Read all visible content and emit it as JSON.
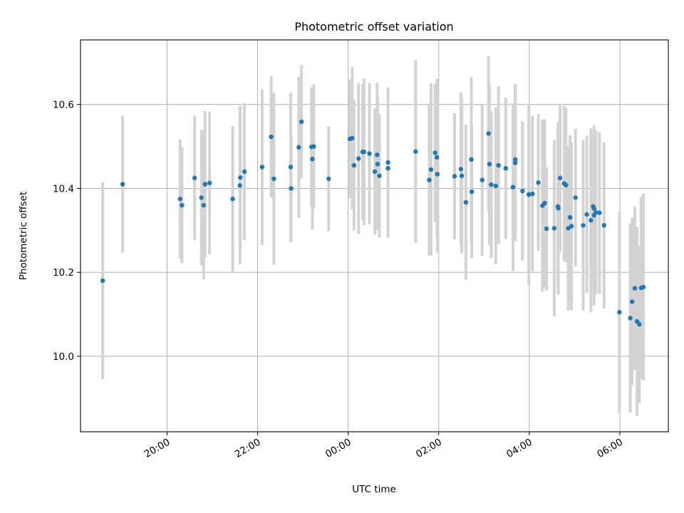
{
  "chart_data": {
    "type": "scatter",
    "title": "Photometric offset variation",
    "xlabel": "UTC time",
    "ylabel": "Photometric offset",
    "x_ticks": [
      "20:00",
      "22:00",
      "00:00",
      "02:00",
      "04:00",
      "06:00"
    ],
    "x_tick_hours": [
      20,
      22,
      24,
      26,
      28,
      30
    ],
    "y_ticks": [
      10.0,
      10.2,
      10.4,
      10.6
    ],
    "xlim_hours": [
      18.09,
      31.07
    ],
    "ylim": [
      9.82,
      10.754
    ],
    "grid": true,
    "legend": "none",
    "colors": {
      "marker": "#1f77b4",
      "errorbar": "#d3d3d3",
      "grid": "#b0b0b0"
    },
    "x_unit": "hours since 00:00 on the first night (values above 24 are the following day)",
    "series": [
      {
        "x": [
          18.58,
          19.02,
          20.29,
          20.33,
          20.61,
          20.76,
          20.81,
          20.84,
          20.94,
          21.45,
          21.61,
          21.62,
          21.71,
          22.1,
          22.3,
          22.36,
          22.73,
          22.74,
          22.91,
          22.97,
          23.19,
          23.21,
          23.24,
          23.57,
          24.04,
          24.09,
          24.13,
          24.23,
          24.32,
          24.35,
          24.47,
          24.59,
          24.64,
          24.65,
          24.69,
          24.88,
          24.88,
          25.49,
          25.79,
          25.83,
          25.92,
          25.96,
          25.97,
          26.35,
          26.49,
          26.51,
          26.6,
          26.72,
          26.73,
          26.96,
          27.1,
          27.12,
          27.16,
          27.26,
          27.32,
          27.48,
          27.64,
          27.69,
          27.69,
          27.85,
          27.99,
          27.99,
          28.07,
          28.2,
          28.29,
          28.34,
          28.38,
          28.55,
          28.63,
          28.64,
          28.68,
          28.77,
          28.81,
          28.86,
          28.9,
          28.93,
          29.02,
          29.19,
          29.27,
          29.36,
          29.41,
          29.43,
          29.43,
          29.47,
          29.55,
          29.65,
          29.99,
          30.23,
          30.27,
          30.33,
          30.38,
          30.43,
          30.47,
          30.52
        ],
        "y": [
          10.18,
          10.41,
          10.375,
          10.36,
          10.425,
          10.378,
          10.36,
          10.41,
          10.413,
          10.375,
          10.407,
          10.426,
          10.44,
          10.451,
          10.523,
          10.423,
          10.451,
          10.4,
          10.498,
          10.559,
          10.499,
          10.47,
          10.5,
          10.423,
          10.518,
          10.52,
          10.455,
          10.471,
          10.487,
          10.487,
          10.483,
          10.44,
          10.48,
          10.458,
          10.43,
          10.462,
          10.448,
          10.488,
          10.42,
          10.445,
          10.485,
          10.474,
          10.434,
          10.429,
          10.446,
          10.43,
          10.367,
          10.469,
          10.392,
          10.42,
          10.531,
          10.458,
          10.409,
          10.406,
          10.455,
          10.448,
          10.403,
          10.461,
          10.469,
          10.394,
          10.386,
          10.385,
          10.387,
          10.414,
          10.359,
          10.365,
          10.304,
          10.305,
          10.357,
          10.353,
          10.425,
          10.412,
          10.408,
          10.305,
          10.331,
          10.31,
          10.378,
          10.312,
          10.338,
          10.324,
          10.357,
          10.336,
          10.352,
          10.343,
          10.342,
          10.312,
          10.105,
          10.091,
          10.13,
          10.162,
          10.083,
          10.076,
          10.163,
          10.165
        ],
        "yerr": [
          0.235,
          0.163,
          0.142,
          0.138,
          0.148,
          0.162,
          0.177,
          0.174,
          0.17,
          0.174,
          0.188,
          0.171,
          0.163,
          0.185,
          0.145,
          0.205,
          0.177,
          0.128,
          0.168,
          0.135,
          0.142,
          0.168,
          0.148,
          0.125,
          0.142,
          0.17,
          0.155,
          0.18,
          0.163,
          0.175,
          0.168,
          0.15,
          0.172,
          0.158,
          0.147,
          0.178,
          0.165,
          0.218,
          0.18,
          0.205,
          0.165,
          0.187,
          0.187,
          0.15,
          0.183,
          0.185,
          0.185,
          0.197,
          0.158,
          0.18,
          0.185,
          0.193,
          0.175,
          0.187,
          0.188,
          0.168,
          0.2,
          0.187,
          0.177,
          0.166,
          0.19,
          0.216,
          0.185,
          0.163,
          0.205,
          0.2,
          0.147,
          0.21,
          0.187,
          0.206,
          0.176,
          0.185,
          0.184,
          0.196,
          0.196,
          0.2,
          0.164,
          0.203,
          0.187,
          0.219,
          0.179,
          0.215,
          0.195,
          0.195,
          0.192,
          0.198,
          0.24,
          0.225,
          0.2,
          0.195,
          0.225,
          0.187,
          0.217,
          0.223
        ]
      }
    ]
  }
}
